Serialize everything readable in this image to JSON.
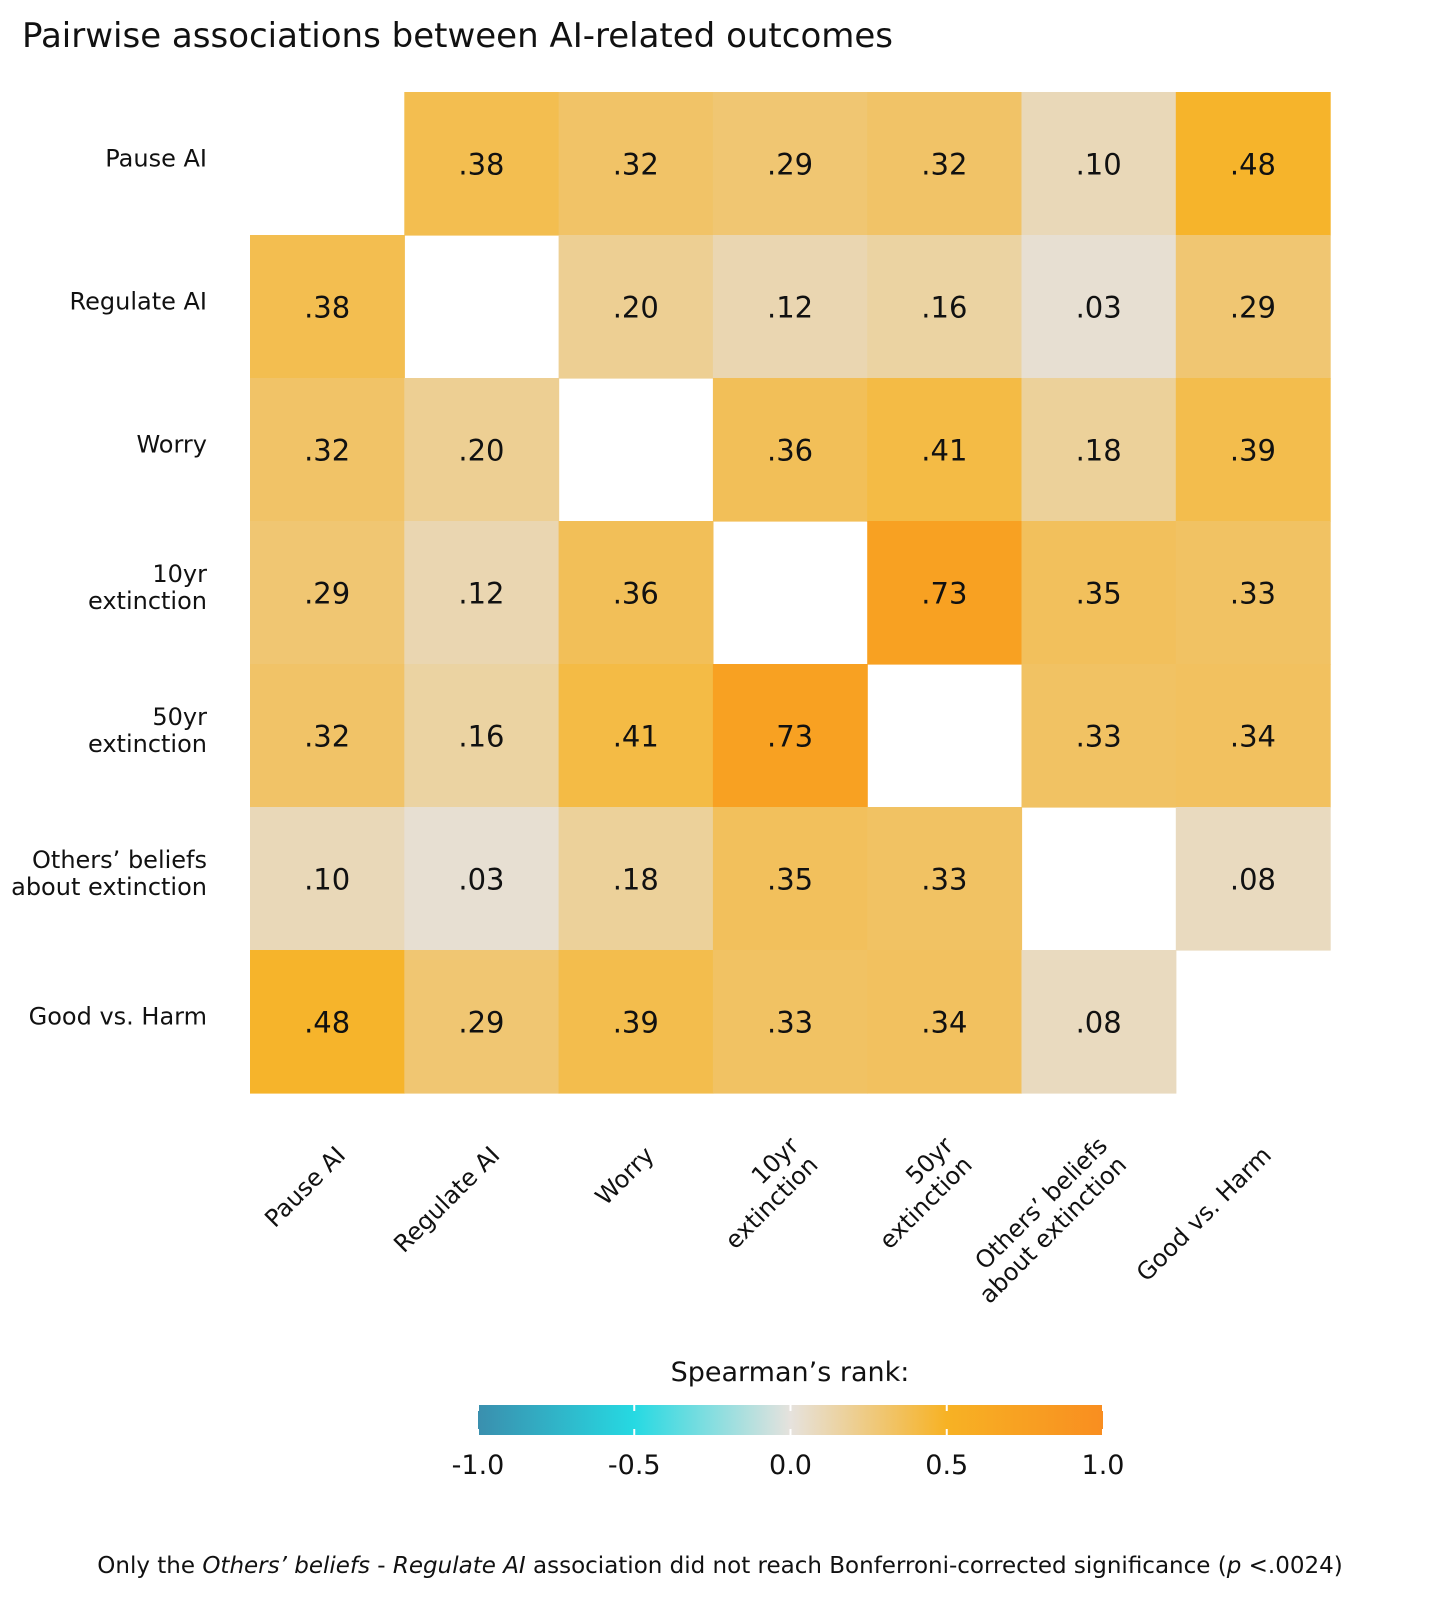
{
  "title": "Pairwise associations between AI-related outcomes",
  "chart_data": {
    "type": "heatmap",
    "title": "Pairwise associations between AI-related outcomes",
    "row_labels": [
      [
        "Pause AI"
      ],
      [
        "Regulate AI"
      ],
      [
        "Worry"
      ],
      [
        "10yr",
        "extinction"
      ],
      [
        "50yr",
        "extinction"
      ],
      [
        "Others’ beliefs",
        "about extinction"
      ],
      [
        "Good vs. Harm"
      ]
    ],
    "col_labels": [
      [
        "Pause AI"
      ],
      [
        "Regulate AI"
      ],
      [
        "Worry"
      ],
      [
        "10yr",
        "extinction"
      ],
      [
        "50yr",
        "extinction"
      ],
      [
        "Others’ beliefs",
        "about extinction"
      ],
      [
        "Good vs. Harm"
      ]
    ],
    "matrix": [
      [
        null,
        0.38,
        0.32,
        0.29,
        0.32,
        0.1,
        0.48
      ],
      [
        0.38,
        null,
        0.2,
        0.12,
        0.16,
        0.03,
        0.29
      ],
      [
        0.32,
        0.2,
        null,
        0.36,
        0.41,
        0.18,
        0.39
      ],
      [
        0.29,
        0.12,
        0.36,
        null,
        0.73,
        0.35,
        0.33
      ],
      [
        0.32,
        0.16,
        0.41,
        0.73,
        null,
        0.33,
        0.34
      ],
      [
        0.1,
        0.03,
        0.18,
        0.35,
        0.33,
        null,
        0.08
      ],
      [
        0.48,
        0.29,
        0.39,
        0.33,
        0.34,
        0.08,
        null
      ]
    ],
    "value_labels": [
      [
        null,
        ".38",
        ".32",
        ".29",
        ".32",
        ".10",
        ".48"
      ],
      [
        ".38",
        null,
        ".20",
        ".12",
        ".16",
        ".03",
        ".29"
      ],
      [
        ".32",
        ".20",
        null,
        ".36",
        ".41",
        ".18",
        ".39"
      ],
      [
        ".29",
        ".12",
        ".36",
        null,
        ".73",
        ".35",
        ".33"
      ],
      [
        ".32",
        ".16",
        ".41",
        ".73",
        null,
        ".33",
        ".34"
      ],
      [
        ".10",
        ".03",
        ".18",
        ".35",
        ".33",
        null,
        ".08"
      ],
      [
        ".48",
        ".29",
        ".39",
        ".33",
        ".34",
        ".08",
        null
      ]
    ],
    "legend": {
      "title": "Spearman’s rank:",
      "range": [
        -1.0,
        1.0
      ],
      "ticks": [
        -1.0,
        -0.5,
        0.0,
        0.5,
        1.0
      ],
      "tick_labels": [
        "-1.0",
        "-0.5",
        "0.0",
        "0.5",
        "1.0"
      ],
      "placement": "bottom",
      "color_stops": [
        {
          "value": -1.0,
          "color": "#3a8fae"
        },
        {
          "value": -0.5,
          "color": "#26d9e2"
        },
        {
          "value": 0.0,
          "color": "#e6e2dd"
        },
        {
          "value": 0.5,
          "color": "#f7b224"
        },
        {
          "value": 1.0,
          "color": "#f98e20"
        }
      ]
    }
  },
  "footnote": {
    "part1": "Only the ",
    "em1": "Others’ beliefs",
    "part2": " - ",
    "em2": "Regulate AI",
    "part3": " association did not reach Bonferroni-corrected significance (",
    "em3": "p",
    "part4": " <.0024)"
  }
}
